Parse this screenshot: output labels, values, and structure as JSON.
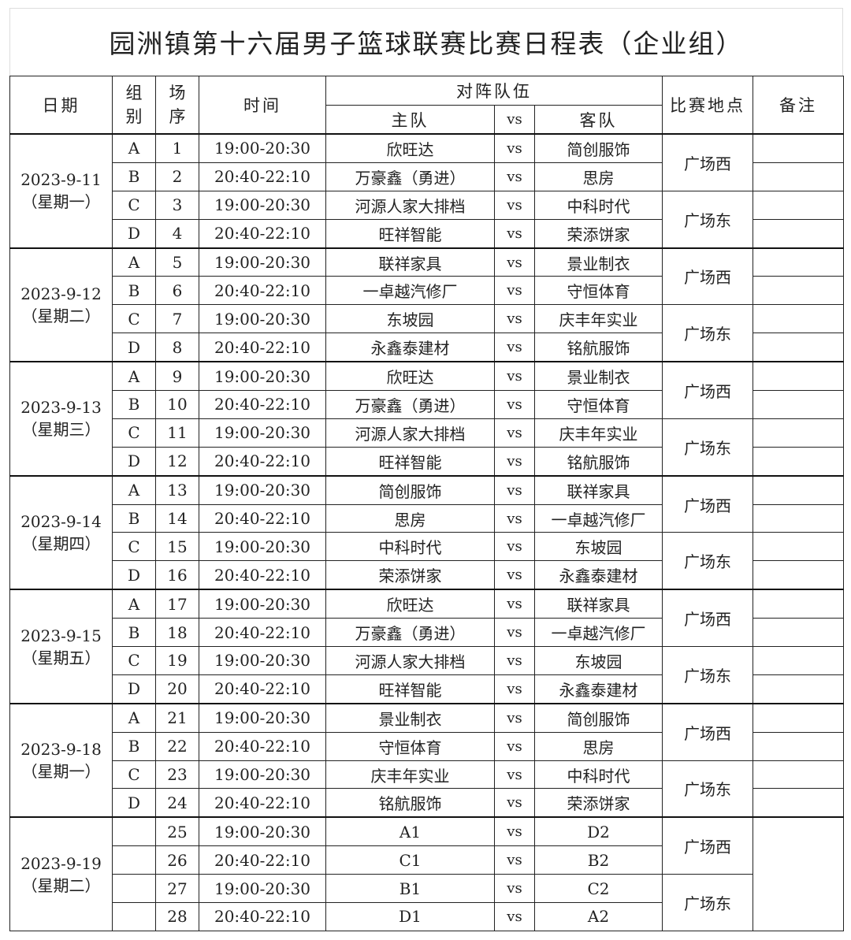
{
  "title": "园洲镇第十六届男子篮球联赛比赛日程表（企业组）",
  "header": {
    "date": "日期",
    "group": "组别",
    "seq": "场序",
    "time": "时间",
    "matchup": "对阵队伍",
    "home": "主队",
    "vs": "vs",
    "away": "客队",
    "venue": "比赛地点",
    "notes": "备注"
  },
  "days": [
    {
      "date": "2023-9-11",
      "weekday": "（星期一）",
      "venues": [
        "广场西",
        "广场东"
      ],
      "games": [
        {
          "group": "A",
          "seq": "1",
          "time": "19:00-20:30",
          "home": "欣旺达",
          "vs": "vs",
          "away": "简创服饰"
        },
        {
          "group": "B",
          "seq": "2",
          "time": "20:40-22:10",
          "home": "万豪鑫（勇进）",
          "vs": "vs",
          "away": "思房"
        },
        {
          "group": "C",
          "seq": "3",
          "time": "19:00-20:30",
          "home": "河源人家大排档",
          "vs": "vs",
          "away": "中科时代"
        },
        {
          "group": "D",
          "seq": "4",
          "time": "20:40-22:10",
          "home": "旺祥智能",
          "vs": "vs",
          "away": "荣添饼家"
        }
      ]
    },
    {
      "date": "2023-9-12",
      "weekday": "（星期二）",
      "venues": [
        "广场西",
        "广场东"
      ],
      "games": [
        {
          "group": "A",
          "seq": "5",
          "time": "19:00-20:30",
          "home": "联祥家具",
          "vs": "vs",
          "away": "景业制衣"
        },
        {
          "group": "B",
          "seq": "6",
          "time": "20:40-22:10",
          "home": "一卓越汽修厂",
          "vs": "vs",
          "away": "守恒体育"
        },
        {
          "group": "C",
          "seq": "7",
          "time": "19:00-20:30",
          "home": "东坡园",
          "vs": "vs",
          "away": "庆丰年实业"
        },
        {
          "group": "D",
          "seq": "8",
          "time": "20:40-22:10",
          "home": "永鑫泰建材",
          "vs": "vs",
          "away": "铭航服饰"
        }
      ]
    },
    {
      "date": "2023-9-13",
      "weekday": "（星期三）",
      "venues": [
        "广场西",
        "广场东"
      ],
      "games": [
        {
          "group": "A",
          "seq": "9",
          "time": "19:00-20:30",
          "home": "欣旺达",
          "vs": "vs",
          "away": "景业制衣"
        },
        {
          "group": "B",
          "seq": "10",
          "time": "20:40-22:10",
          "home": "万豪鑫（勇进）",
          "vs": "vs",
          "away": "守恒体育"
        },
        {
          "group": "C",
          "seq": "11",
          "time": "19:00-20:30",
          "home": "河源人家大排档",
          "vs": "vs",
          "away": "庆丰年实业"
        },
        {
          "group": "D",
          "seq": "12",
          "time": "20:40-22:10",
          "home": "旺祥智能",
          "vs": "vs",
          "away": "铭航服饰"
        }
      ]
    },
    {
      "date": "2023-9-14",
      "weekday": "（星期四）",
      "venues": [
        "广场西",
        "广场东"
      ],
      "games": [
        {
          "group": "A",
          "seq": "13",
          "time": "19:00-20:30",
          "home": "简创服饰",
          "vs": "vs",
          "away": "联祥家具"
        },
        {
          "group": "B",
          "seq": "14",
          "time": "20:40-22:10",
          "home": "思房",
          "vs": "vs",
          "away": "一卓越汽修厂"
        },
        {
          "group": "C",
          "seq": "15",
          "time": "19:00-20:30",
          "home": "中科时代",
          "vs": "vs",
          "away": "东坡园"
        },
        {
          "group": "D",
          "seq": "16",
          "time": "20:40-22:10",
          "home": "荣添饼家",
          "vs": "vs",
          "away": "永鑫泰建材"
        }
      ]
    },
    {
      "date": "2023-9-15",
      "weekday": "（星期五）",
      "venues": [
        "广场西",
        "广场东"
      ],
      "games": [
        {
          "group": "A",
          "seq": "17",
          "time": "19:00-20:30",
          "home": "欣旺达",
          "vs": "vs",
          "away": "联祥家具"
        },
        {
          "group": "B",
          "seq": "18",
          "time": "20:40-22:10",
          "home": "万豪鑫（勇进）",
          "vs": "vs",
          "away": "一卓越汽修厂"
        },
        {
          "group": "C",
          "seq": "19",
          "time": "19:00-20:30",
          "home": "河源人家大排档",
          "vs": "vs",
          "away": "东坡园"
        },
        {
          "group": "D",
          "seq": "20",
          "time": "20:40-22:10",
          "home": "旺祥智能",
          "vs": "vs",
          "away": "永鑫泰建材"
        }
      ]
    },
    {
      "date": "2023-9-18",
      "weekday": "（星期一）",
      "venues": [
        "广场西",
        "广场东"
      ],
      "games": [
        {
          "group": "A",
          "seq": "21",
          "time": "19:00-20:30",
          "home": "景业制衣",
          "vs": "vs",
          "away": "简创服饰"
        },
        {
          "group": "B",
          "seq": "22",
          "time": "20:40-22:10",
          "home": "守恒体育",
          "vs": "vs",
          "away": "思房"
        },
        {
          "group": "C",
          "seq": "23",
          "time": "19:00-20:30",
          "home": "庆丰年实业",
          "vs": "vs",
          "away": "中科时代"
        },
        {
          "group": "D",
          "seq": "24",
          "time": "20:40-22:10",
          "home": "铭航服饰",
          "vs": "vs",
          "away": "荣添饼家"
        }
      ]
    },
    {
      "date": "2023-9-19",
      "weekday": "（星期二）",
      "venues": [
        "广场西",
        "广场东"
      ],
      "games": [
        {
          "group": "",
          "seq": "25",
          "time": "19:00-20:30",
          "home": "A1",
          "vs": "vs",
          "away": "D2"
        },
        {
          "group": "",
          "seq": "26",
          "time": "20:40-22:10",
          "home": "C1",
          "vs": "vs",
          "away": "B2"
        },
        {
          "group": "",
          "seq": "27",
          "time": "19:00-20:30",
          "home": "B1",
          "vs": "vs",
          "away": "C2"
        },
        {
          "group": "",
          "seq": "28",
          "time": "20:40-22:10",
          "home": "D1",
          "vs": "vs",
          "away": "A2"
        }
      ]
    }
  ]
}
